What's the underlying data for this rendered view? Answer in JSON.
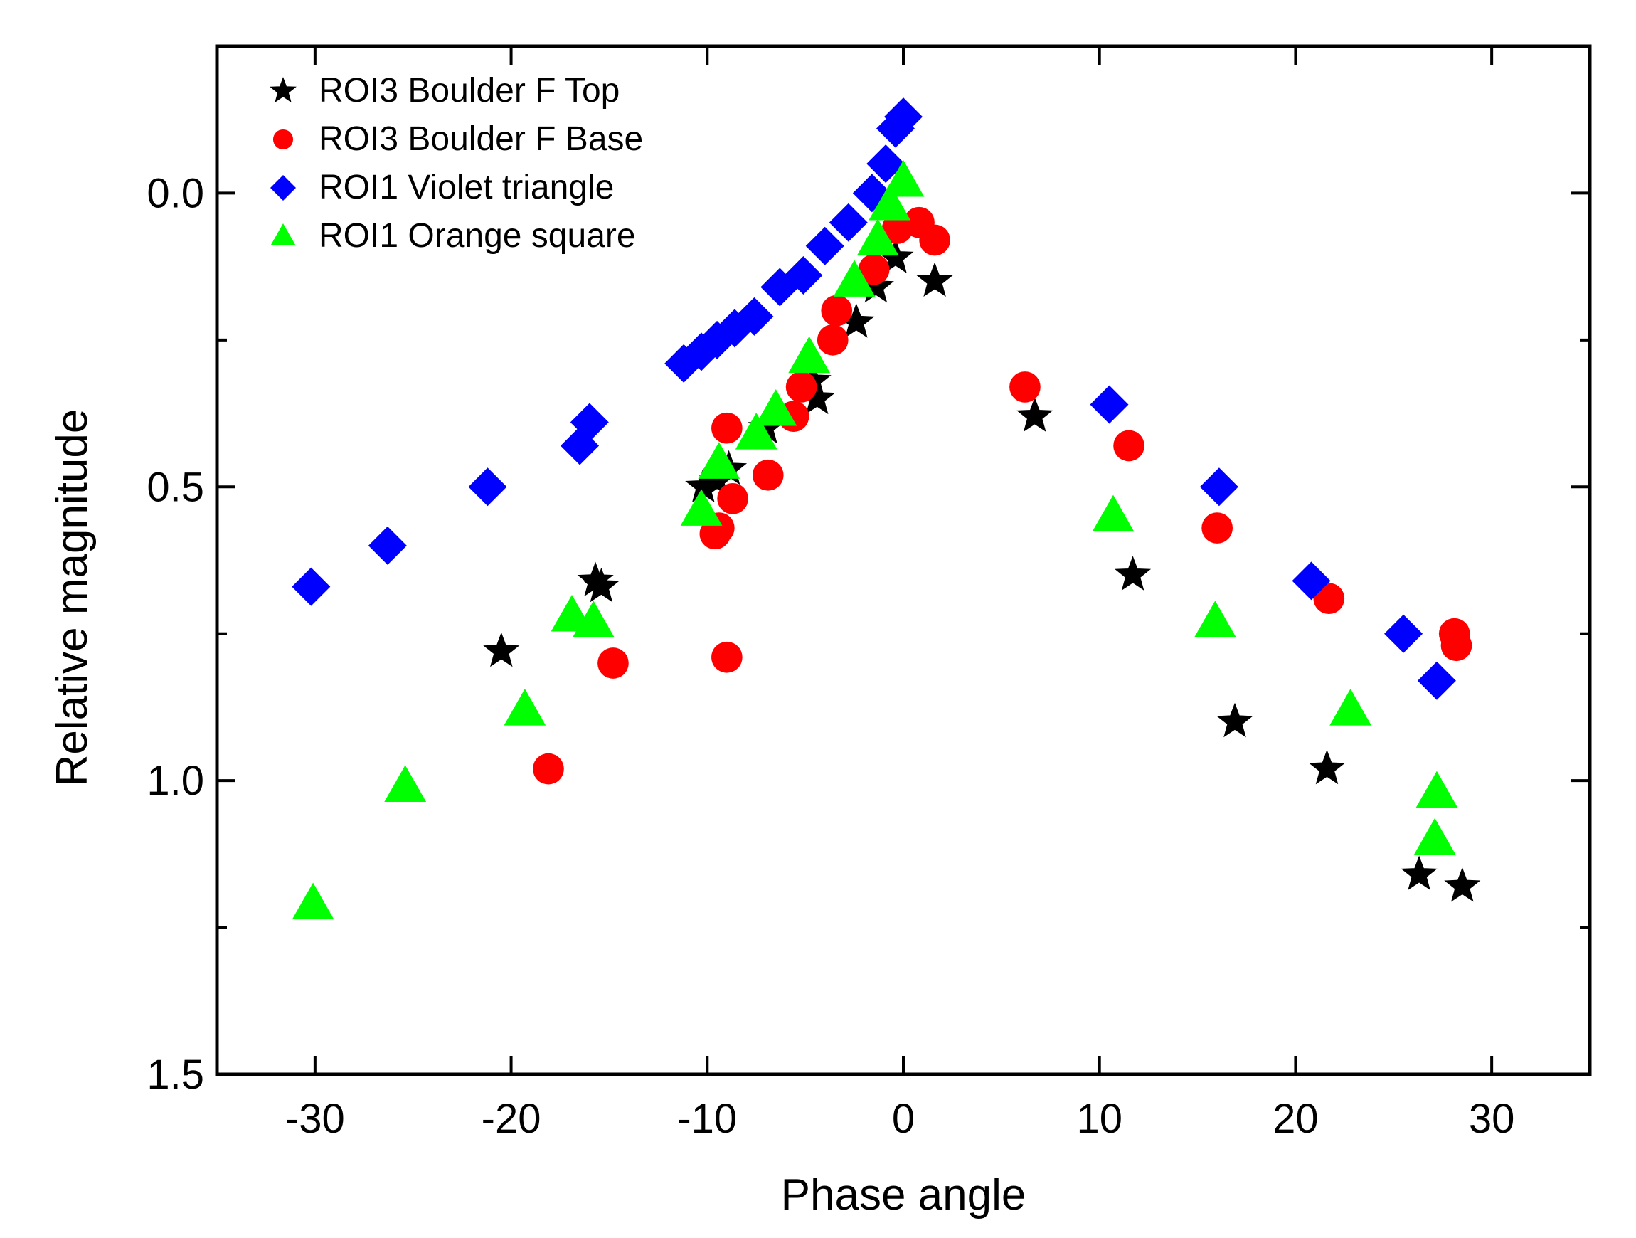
{
  "chart_data": {
    "type": "scatter",
    "title": "",
    "xlabel": "Phase angle",
    "ylabel": "Relative magnitude",
    "xlim": [
      -35,
      35
    ],
    "ylim": [
      1.5,
      -0.25
    ],
    "y_inverted": true,
    "x_ticks": [
      -30,
      -20,
      -10,
      0,
      10,
      20,
      30
    ],
    "x_tick_labels": [
      "-30",
      "-20",
      "-10",
      "0",
      "10",
      "20",
      "30"
    ],
    "y_ticks": [
      0.0,
      0.5,
      1.0,
      1.5
    ],
    "y_tick_labels": [
      "0.0",
      "0.5",
      "1.0",
      "1.5"
    ],
    "y_minor_ticks": [
      0.25,
      0.75,
      1.25
    ],
    "grid": false,
    "legend_position": "top-left",
    "series": [
      {
        "name": "ROI3 Boulder F Top",
        "marker": "star",
        "color": "#000000",
        "points": [
          [
            -20.5,
            0.78
          ],
          [
            -15.7,
            0.66
          ],
          [
            -15.4,
            0.67
          ],
          [
            -10.2,
            0.5
          ],
          [
            -9.5,
            0.49
          ],
          [
            -8.9,
            0.47
          ],
          [
            -7.0,
            0.4
          ],
          [
            -4.6,
            0.32
          ],
          [
            -4.4,
            0.35
          ],
          [
            -2.4,
            0.22
          ],
          [
            -1.4,
            0.16
          ],
          [
            -0.4,
            0.11
          ],
          [
            1.6,
            0.15
          ],
          [
            6.7,
            0.38
          ],
          [
            11.7,
            0.65
          ],
          [
            16.9,
            0.9
          ],
          [
            21.6,
            0.98
          ],
          [
            26.3,
            1.16
          ],
          [
            28.5,
            1.18
          ]
        ]
      },
      {
        "name": "ROI3 Boulder F Base",
        "marker": "circle",
        "color": "#ff0000",
        "points": [
          [
            -18.1,
            0.98
          ],
          [
            -14.8,
            0.8
          ],
          [
            -9.6,
            0.58
          ],
          [
            -9.4,
            0.57
          ],
          [
            -9.0,
            0.79
          ],
          [
            -9.0,
            0.4
          ],
          [
            -8.7,
            0.52
          ],
          [
            -6.9,
            0.48
          ],
          [
            -5.6,
            0.38
          ],
          [
            -5.2,
            0.33
          ],
          [
            -3.6,
            0.25
          ],
          [
            -3.4,
            0.2
          ],
          [
            -1.5,
            0.13
          ],
          [
            -0.3,
            0.06
          ],
          [
            0.8,
            0.05
          ],
          [
            1.6,
            0.08
          ],
          [
            6.2,
            0.33
          ],
          [
            11.5,
            0.43
          ],
          [
            16.0,
            0.57
          ],
          [
            21.7,
            0.69
          ],
          [
            28.1,
            0.75
          ],
          [
            28.2,
            0.77
          ]
        ]
      },
      {
        "name": "ROI1 Violet triangle",
        "marker": "diamond",
        "color": "#0000ff",
        "points": [
          [
            -30.2,
            0.67
          ],
          [
            -26.3,
            0.6
          ],
          [
            -21.2,
            0.5
          ],
          [
            -16.5,
            0.43
          ],
          [
            -16.0,
            0.39
          ],
          [
            -11.2,
            0.29
          ],
          [
            -10.3,
            0.27
          ],
          [
            -9.5,
            0.25
          ],
          [
            -8.6,
            0.23
          ],
          [
            -7.6,
            0.21
          ],
          [
            -6.3,
            0.16
          ],
          [
            -5.1,
            0.14
          ],
          [
            -4.0,
            0.09
          ],
          [
            -2.8,
            0.05
          ],
          [
            -1.6,
            0.0
          ],
          [
            -0.9,
            -0.05
          ],
          [
            -0.4,
            -0.11
          ],
          [
            0.0,
            -0.13
          ],
          [
            10.5,
            0.36
          ],
          [
            16.1,
            0.5
          ],
          [
            20.8,
            0.66
          ],
          [
            25.5,
            0.75
          ],
          [
            27.2,
            0.83
          ]
        ]
      },
      {
        "name": "ROI1 Orange square",
        "marker": "triangle",
        "color": "#00ff00",
        "points": [
          [
            -30.1,
            1.21
          ],
          [
            -25.4,
            1.01
          ],
          [
            -19.3,
            0.88
          ],
          [
            -16.9,
            0.72
          ],
          [
            -15.8,
            0.73
          ],
          [
            -10.3,
            0.54
          ],
          [
            -9.4,
            0.46
          ],
          [
            -7.5,
            0.41
          ],
          [
            -6.5,
            0.37
          ],
          [
            -4.8,
            0.28
          ],
          [
            -2.5,
            0.15
          ],
          [
            -1.3,
            0.08
          ],
          [
            -0.7,
            0.02
          ],
          [
            0.0,
            -0.02
          ],
          [
            10.7,
            0.55
          ],
          [
            15.9,
            0.73
          ],
          [
            22.8,
            0.88
          ],
          [
            27.2,
            1.02
          ],
          [
            27.1,
            1.1
          ]
        ]
      }
    ]
  }
}
